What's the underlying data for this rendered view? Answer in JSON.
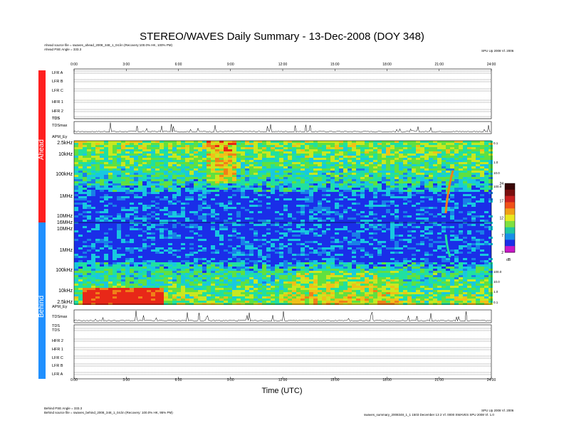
{
  "title": "STEREO/WAVES Daily Summary - 13-Dec-2008 (DOY 348)",
  "header": {
    "ahead_source": "Ahead source file = swaves_ahead_2008_348_1_04.lin (Recovery:100.0% HK, 100% PM)",
    "ahead_angle": "Ahead PSE Angle = 333.3",
    "version_top": "SPU Up 2008 Vl. 2006"
  },
  "footer": {
    "behind_angle": "Behind PSE Angle = 333.3",
    "behind_source": "Behind source file = swaves_behind_2008_348_1_04.lin (Recovery: 100.0% HK, 95% PM)",
    "version_bottom": "SPU Up 2008 Vl. 2006",
    "generator": "swaves_summary_2008348_1_1 1503 December 13 2 Vl. 0000 SWAVES SPU 2008 Vl. 1.0"
  },
  "spacecraft": {
    "ahead": "Ahead",
    "behind": "Behind"
  },
  "colors": {
    "ahead_bar": "#ff2020",
    "behind_bar": "#2090ff",
    "spectrum_bg": "#1a2ee8"
  },
  "chart_data": {
    "type": "heatmap",
    "title": "STEREO/WAVES Daily Summary - 13-Dec-2008 (DOY 348)",
    "xlabel": "Time (UTC)",
    "x_ticks": [
      "0:00",
      "3:00",
      "6:00",
      "9:00",
      "12:00",
      "15:00",
      "18:00",
      "21:00",
      "24:00"
    ],
    "xlim": [
      0,
      24
    ],
    "ahead_panels": [
      "LFR A",
      "LFR B",
      "LFR C",
      "HFR 1",
      "HFR 2",
      "TDS",
      "TDSmax",
      "APM_Ey"
    ],
    "behind_panels": [
      "APM_Ey",
      "TDSmax",
      "TDS",
      "HFR 2",
      "HFR 1",
      "LFR C",
      "LFR B",
      "LFR A"
    ],
    "ahead_freq_ticks": [
      "2.5kHz",
      "10kHz",
      "100kHz",
      "1MHz",
      "10MHz",
      "16MHz"
    ],
    "behind_freq_ticks": [
      "16MHz",
      "10MHz",
      "1MHz",
      "100kHz",
      "10kHz",
      "2.5kHz"
    ],
    "right_ticks_ahead": [
      "0.1",
      "1.0",
      "10.0",
      "100.0"
    ],
    "right_ticks_behind": [
      "100.0",
      "10.0",
      "1.0",
      "0.1"
    ],
    "colorbar": {
      "min": 2,
      "max": 24,
      "ticks": [
        "24",
        "17",
        "12",
        "7",
        "2"
      ],
      "unit": "dB"
    },
    "events": [
      {
        "spacecraft": "Ahead",
        "type": "type III radio burst",
        "start_hour": 20.9,
        "end_hour": 21.2
      },
      {
        "spacecraft": "Behind",
        "type": "type III radio burst",
        "start_hour": 20.9,
        "end_hour": 21.2
      }
    ]
  }
}
